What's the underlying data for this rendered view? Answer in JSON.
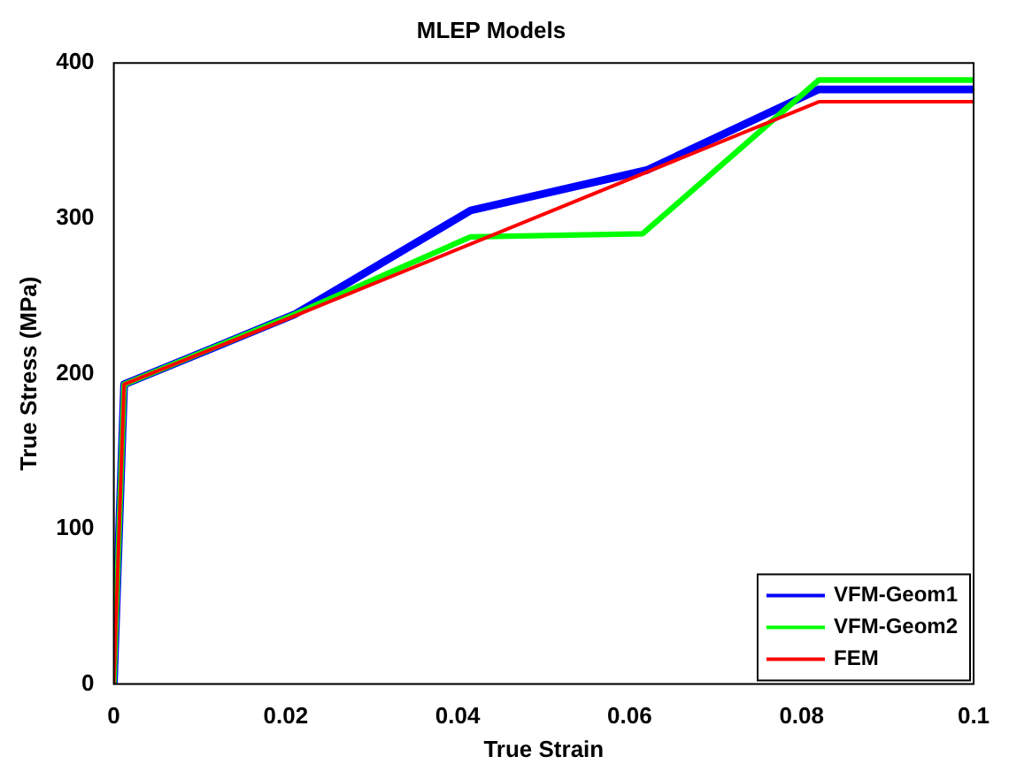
{
  "chart_data": {
    "type": "line",
    "title": "MLEP Models",
    "xlabel": "True Strain",
    "ylabel": "True Stress (MPa)",
    "xlim": [
      0,
      0.1
    ],
    "xticks": [
      0,
      0.02,
      0.04,
      0.06,
      0.08,
      0.1
    ],
    "ylim": [
      0,
      400
    ],
    "yticks": [
      0,
      100,
      200,
      300,
      400
    ],
    "grid": false,
    "legend": "bottom right",
    "series": [
      {
        "name": "VFM-Geom1",
        "color": "#0000ff",
        "x": [
          0,
          0.0012,
          0.021,
          0.0415,
          0.062,
          0.082,
          0.1
        ],
        "values": [
          0,
          193,
          238,
          305,
          331,
          383,
          383
        ]
      },
      {
        "name": "VFM-Geom2",
        "color": "#00ff00",
        "x": [
          0,
          0.0012,
          0.021,
          0.0415,
          0.0615,
          0.082,
          0.1
        ],
        "values": [
          0,
          193,
          238,
          288,
          290,
          389,
          389
        ]
      },
      {
        "name": "FEM",
        "color": "#ff0000",
        "x": [
          0,
          0.0012,
          0.021,
          0.082,
          0.1
        ],
        "values": [
          0,
          193,
          237,
          375,
          375
        ]
      }
    ]
  }
}
